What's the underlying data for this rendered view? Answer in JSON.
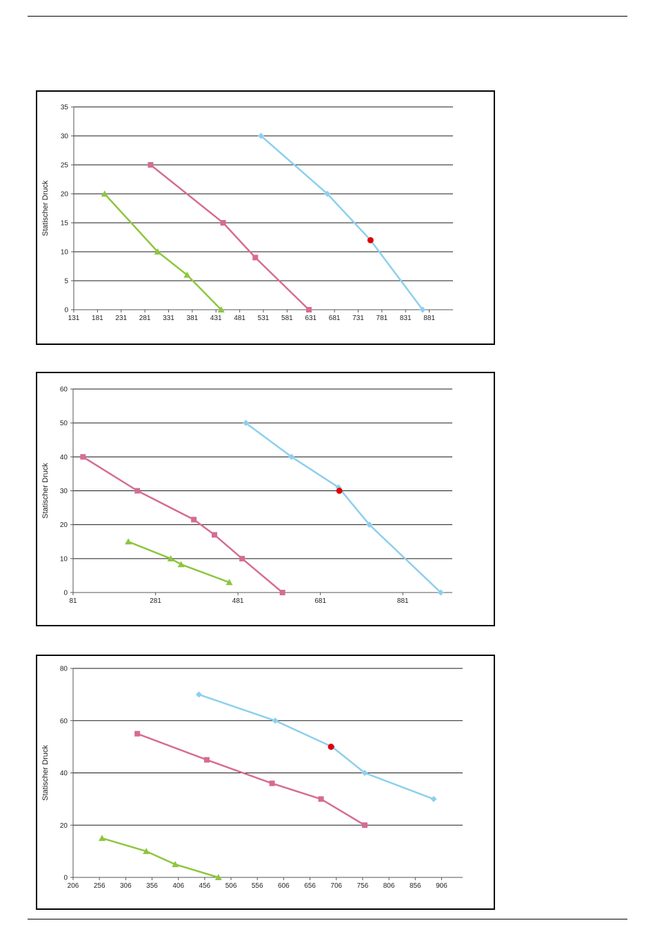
{
  "chart_data": [
    {
      "type": "line",
      "ylabel": "Statischer  Druck",
      "xlim": [
        131,
        931
      ],
      "xticks": [
        131,
        181,
        231,
        281,
        331,
        381,
        431,
        481,
        531,
        581,
        631,
        681,
        731,
        781,
        831,
        881
      ],
      "ylim": [
        0,
        35
      ],
      "yticks": [
        0,
        5,
        10,
        15,
        20,
        25,
        30,
        35
      ],
      "grid": true,
      "series": [
        {
          "marker": "diamond",
          "color": "#8ccfee",
          "points": [
            [
              526,
              30
            ],
            [
              666,
              20
            ],
            [
              757,
              12
            ],
            [
              867,
              0
            ]
          ]
        },
        {
          "marker": "square",
          "color": "#d66b93",
          "points": [
            [
              293,
              25
            ],
            [
              446,
              15
            ],
            [
              514,
              9
            ],
            [
              627,
              0
            ]
          ]
        },
        {
          "marker": "triangle",
          "color": "#8dc63f",
          "points": [
            [
              196,
              20
            ],
            [
              308,
              10
            ],
            [
              370,
              6
            ],
            [
              442,
              0
            ]
          ]
        }
      ],
      "highlight": {
        "color": "#e00000",
        "points": [
          [
            757,
            12
          ]
        ]
      }
    },
    {
      "type": "line",
      "ylabel": "Statischer  Druck",
      "xlim": [
        81,
        1001
      ],
      "xticks": [
        81,
        281,
        481,
        681,
        881
      ],
      "ylim": [
        0,
        60
      ],
      "yticks": [
        0,
        10,
        20,
        30,
        40,
        50,
        60
      ],
      "grid": true,
      "series": [
        {
          "marker": "diamond",
          "color": "#8ccfee",
          "points": [
            [
              500,
              50
            ],
            [
              611,
              40
            ],
            [
              725,
              31
            ],
            [
              800,
              20
            ],
            [
              973,
              0
            ]
          ]
        },
        {
          "marker": "square",
          "color": "#d66b93",
          "points": [
            [
              105,
              40
            ],
            [
              237,
              30
            ],
            [
              374,
              21.5
            ],
            [
              424,
              17
            ],
            [
              491,
              10
            ],
            [
              589,
              0
            ]
          ]
        },
        {
          "marker": "triangle",
          "color": "#8dc63f",
          "points": [
            [
              215,
              15
            ],
            [
              318,
              10
            ],
            [
              343,
              8.3
            ],
            [
              460,
              3
            ]
          ]
        }
      ],
      "highlight": {
        "color": "#e00000",
        "points": [
          [
            727,
            30
          ]
        ]
      }
    },
    {
      "type": "line",
      "ylabel": "Statischer  Druck",
      "xlim": [
        206,
        946
      ],
      "xticks": [
        206,
        256,
        306,
        356,
        406,
        456,
        506,
        556,
        606,
        656,
        706,
        756,
        806,
        856,
        906
      ],
      "ylim": [
        0,
        80
      ],
      "yticks": [
        0,
        20,
        40,
        60,
        80
      ],
      "grid": true,
      "series": [
        {
          "marker": "diamond",
          "color": "#8ccfee",
          "points": [
            [
              445,
              70
            ],
            [
              590,
              60
            ],
            [
              698,
              50
            ],
            [
              760,
              40
            ],
            [
              891,
              30
            ]
          ]
        },
        {
          "marker": "square",
          "color": "#d66b93",
          "points": [
            [
              328,
              55
            ],
            [
              460,
              45
            ],
            [
              584,
              36
            ],
            [
              677,
              30
            ],
            [
              760,
              20
            ]
          ]
        },
        {
          "marker": "triangle",
          "color": "#8dc63f",
          "points": [
            [
              261,
              15
            ],
            [
              345,
              10
            ],
            [
              400,
              5
            ],
            [
              482,
              0
            ]
          ]
        }
      ],
      "highlight": {
        "color": "#e00000",
        "points": [
          [
            696,
            50
          ]
        ]
      }
    }
  ]
}
